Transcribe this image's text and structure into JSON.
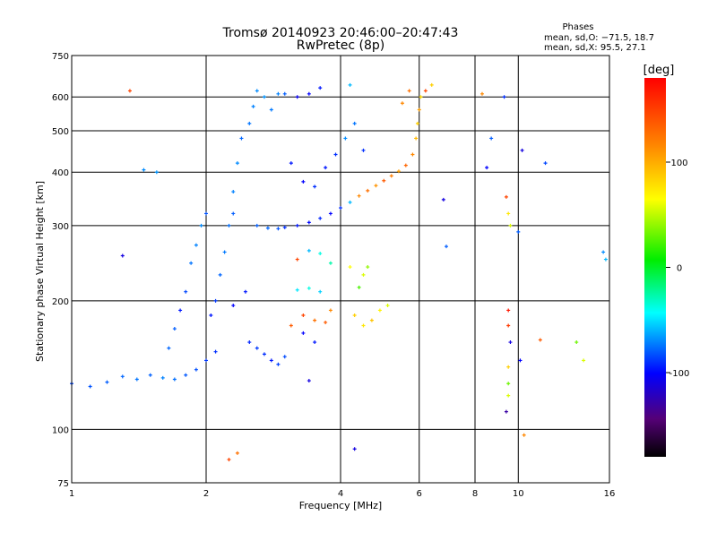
{
  "chart_data": {
    "type": "scatter",
    "title": "Tromsø 20140923 20:46:00–20:47:43",
    "subtitle": "RwPretec (8p)",
    "stats": {
      "heading": "Phases",
      "line_o": "mean, sd,O: −71.5, 18.7",
      "line_x": "mean, sd,X:  95.5, 27.1"
    },
    "xlabel": "Frequency [MHz]",
    "ylabel": "Stationary phase Virtual Height [km]",
    "x_scale": "log",
    "y_scale": "log",
    "xlim": [
      1,
      16
    ],
    "ylim": [
      75,
      750
    ],
    "x_ticks": [
      1,
      2,
      4,
      6,
      8,
      10,
      16
    ],
    "y_ticks": [
      75,
      100,
      200,
      300,
      400,
      500,
      600,
      750
    ],
    "grid": true,
    "colorbar": {
      "label": "[deg]",
      "range": [
        -180,
        180
      ],
      "ticks": [
        100,
        0,
        -100
      ]
    },
    "series": [
      {
        "points": [
          [
            1.0,
            128,
            -85
          ],
          [
            1.1,
            126,
            -82
          ],
          [
            1.2,
            129,
            -80
          ],
          [
            1.3,
            133,
            -78
          ],
          [
            1.4,
            131,
            -75
          ],
          [
            1.5,
            134,
            -79
          ],
          [
            1.6,
            132,
            -72
          ],
          [
            1.7,
            131,
            -76
          ],
          [
            1.8,
            134,
            -81
          ],
          [
            1.9,
            138,
            -83
          ],
          [
            2.0,
            145,
            -88
          ],
          [
            2.1,
            152,
            -90
          ],
          [
            1.65,
            155,
            -78
          ],
          [
            1.7,
            172,
            -80
          ],
          [
            1.75,
            190,
            -95
          ],
          [
            1.8,
            210,
            -85
          ],
          [
            1.85,
            245,
            -75
          ],
          [
            1.9,
            270,
            -72
          ],
          [
            1.95,
            300,
            -70
          ],
          [
            2.0,
            320,
            -82
          ],
          [
            1.45,
            405,
            -70
          ],
          [
            1.55,
            400,
            -68
          ],
          [
            2.05,
            185,
            -95
          ],
          [
            2.1,
            200,
            -88
          ],
          [
            2.15,
            230,
            -78
          ],
          [
            2.2,
            260,
            -74
          ],
          [
            2.25,
            300,
            -76
          ],
          [
            2.3,
            320,
            -80
          ],
          [
            2.3,
            360,
            -72
          ],
          [
            2.35,
            420,
            -70
          ],
          [
            2.4,
            480,
            -78
          ],
          [
            2.5,
            520,
            -75
          ],
          [
            2.55,
            570,
            -72
          ],
          [
            2.6,
            620,
            -70
          ],
          [
            2.7,
            600,
            -68
          ],
          [
            2.8,
            560,
            -74
          ],
          [
            2.9,
            610,
            -72
          ],
          [
            2.5,
            160,
            -92
          ],
          [
            2.6,
            155,
            -88
          ],
          [
            2.7,
            150,
            -90
          ],
          [
            2.8,
            145,
            -95
          ],
          [
            2.9,
            142,
            -86
          ],
          [
            3.0,
            148,
            -84
          ],
          [
            2.3,
            195,
            -100
          ],
          [
            2.45,
            210,
            -95
          ],
          [
            2.6,
            300,
            -80
          ],
          [
            2.75,
            296,
            -78
          ],
          [
            2.9,
            295,
            -82
          ],
          [
            3.0,
            297,
            -90
          ],
          [
            3.2,
            300,
            -95
          ],
          [
            3.4,
            305,
            -98
          ],
          [
            3.6,
            312,
            -92
          ],
          [
            3.8,
            320,
            -100
          ],
          [
            4.0,
            330,
            -90
          ],
          [
            4.2,
            340,
            -60
          ],
          [
            4.4,
            352,
            120
          ],
          [
            4.6,
            362,
            130
          ],
          [
            4.8,
            372,
            115
          ],
          [
            5.0,
            382,
            140
          ],
          [
            5.2,
            392,
            125
          ],
          [
            5.4,
            402,
            110
          ],
          [
            5.6,
            415,
            135
          ],
          [
            5.8,
            440,
            120
          ],
          [
            5.9,
            480,
            100
          ],
          [
            5.95,
            520,
            90
          ],
          [
            6.0,
            560,
            110
          ],
          [
            6.05,
            600,
            85
          ],
          [
            5.5,
            580,
            120
          ],
          [
            5.7,
            620,
            130
          ],
          [
            4.2,
            640,
            -60
          ],
          [
            3.6,
            630,
            -95
          ],
          [
            3.4,
            610,
            -100
          ],
          [
            3.2,
            600,
            -105
          ],
          [
            3.0,
            610,
            -80
          ],
          [
            3.1,
            420,
            -95
          ],
          [
            3.3,
            380,
            -100
          ],
          [
            3.5,
            370,
            -90
          ],
          [
            3.7,
            410,
            -95
          ],
          [
            3.9,
            440,
            -90
          ],
          [
            4.1,
            480,
            -70
          ],
          [
            4.3,
            520,
            -75
          ],
          [
            4.5,
            450,
            -90
          ],
          [
            3.2,
            250,
            150
          ],
          [
            3.4,
            262,
            -60
          ],
          [
            3.6,
            258,
            -40
          ],
          [
            3.8,
            245,
            -30
          ],
          [
            4.2,
            240,
            70
          ],
          [
            4.5,
            230,
            60
          ],
          [
            3.2,
            212,
            -50
          ],
          [
            3.4,
            214,
            -40
          ],
          [
            3.6,
            210,
            -55
          ],
          [
            3.3,
            185,
            150
          ],
          [
            3.5,
            180,
            130
          ],
          [
            3.7,
            178,
            140
          ],
          [
            3.8,
            190,
            120
          ],
          [
            3.1,
            175,
            140
          ],
          [
            3.3,
            168,
            -100
          ],
          [
            3.5,
            160,
            -95
          ],
          [
            4.3,
            185,
            90
          ],
          [
            4.5,
            175,
            80
          ],
          [
            4.7,
            180,
            95
          ],
          [
            4.9,
            190,
            75
          ],
          [
            5.1,
            195,
            60
          ],
          [
            4.6,
            240,
            40
          ],
          [
            4.4,
            215,
            20
          ],
          [
            6.2,
            620,
            150
          ],
          [
            6.4,
            640,
            90
          ],
          [
            6.8,
            345,
            -110
          ],
          [
            6.9,
            268,
            -80
          ],
          [
            8.3,
            610,
            120
          ],
          [
            8.7,
            480,
            -80
          ],
          [
            8.5,
            410,
            -100
          ],
          [
            9.3,
            600,
            -90
          ],
          [
            9.4,
            350,
            150
          ],
          [
            9.5,
            320,
            80
          ],
          [
            9.6,
            300,
            60
          ],
          [
            9.5,
            190,
            170
          ],
          [
            9.5,
            175,
            155
          ],
          [
            9.6,
            160,
            -110
          ],
          [
            9.5,
            140,
            90
          ],
          [
            9.5,
            128,
            30
          ],
          [
            9.5,
            120,
            60
          ],
          [
            9.4,
            110,
            -130
          ],
          [
            10.2,
            450,
            -110
          ],
          [
            10.0,
            290,
            -80
          ],
          [
            10.1,
            145,
            -100
          ],
          [
            11.5,
            420,
            -85
          ],
          [
            11.2,
            162,
            140
          ],
          [
            13.5,
            160,
            30
          ],
          [
            14.0,
            145,
            60
          ],
          [
            15.5,
            260,
            -70
          ],
          [
            15.7,
            250,
            -60
          ],
          [
            2.25,
            85,
            150
          ],
          [
            2.35,
            88,
            130
          ],
          [
            4.3,
            90,
            -110
          ],
          [
            10.3,
            97,
            120
          ],
          [
            1.35,
            620,
            150
          ],
          [
            3.4,
            130,
            -110
          ],
          [
            1.3,
            255,
            -110
          ]
        ]
      }
    ]
  }
}
